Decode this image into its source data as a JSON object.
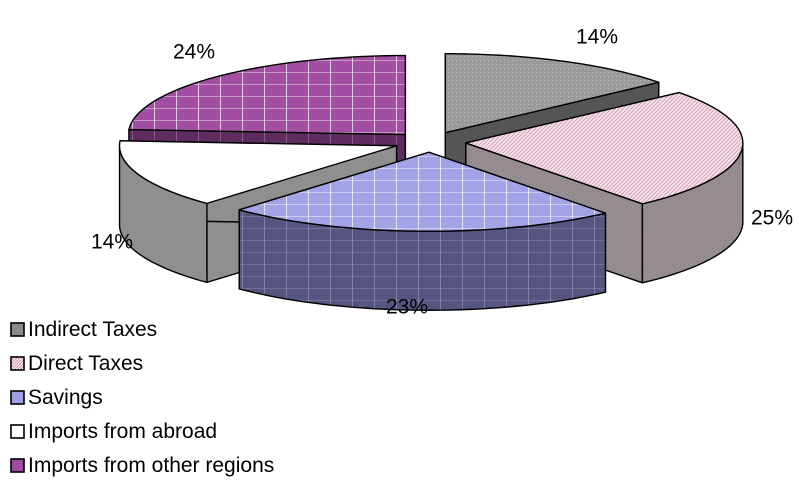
{
  "chart_data": {
    "type": "pie",
    "style": "3d-exploded",
    "title": "",
    "categories": [
      "Indirect Taxes",
      "Direct Taxes",
      "Savings",
      "Imports from abroad",
      "Imports from other regions"
    ],
    "values": [
      14,
      25,
      23,
      14,
      24
    ],
    "labels": [
      "14%",
      "25%",
      "23%",
      "14%",
      "24%"
    ],
    "legend_position": "bottom-left",
    "colors": [
      "#999999",
      "#f5e2ea",
      "#9f9fe6",
      "#ffffff",
      "#a04aa0"
    ],
    "side_colors": [
      "#555555",
      "#999999",
      "#5a5a84",
      "#8a8a8a",
      "#5a2a5a"
    ]
  }
}
